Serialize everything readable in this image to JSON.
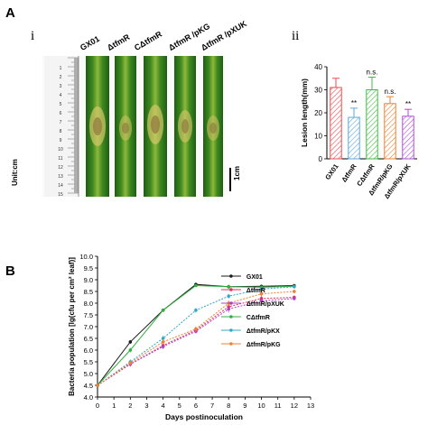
{
  "panel_a": {
    "letter": "A",
    "sub_i": "i",
    "sub_ii": "ii",
    "strain_labels": [
      "GX01",
      "ΔtfmR",
      "CΔtfmR",
      "ΔtfmR /pKG",
      "ΔtfmR /pXUK"
    ],
    "unit_label": "Unit:cm",
    "scale_bar_label": "1cm",
    "ruler_numbers": [
      "1",
      "2",
      "3",
      "4",
      "5",
      "6",
      "7",
      "8",
      "9",
      "10",
      "11",
      "12",
      "13",
      "14",
      "15"
    ]
  },
  "panel_b": {
    "letter": "B"
  },
  "chart_data": [
    {
      "type": "bar",
      "categories": [
        "GX01",
        "ΔtfmR",
        "CΔtfmR",
        "ΔtfmR/pKG",
        "ΔtfmR/pXUK"
      ],
      "values": [
        31,
        18,
        30,
        24,
        18.5
      ],
      "errors": [
        4,
        4,
        5.5,
        3,
        3
      ],
      "significance": [
        "",
        "**",
        "n.s.",
        "n.s.",
        "**"
      ],
      "colors": [
        "#f04a4a",
        "#5aa8e0",
        "#3cbf3c",
        "#f0802a",
        "#b04ad8"
      ],
      "ylabel": "Lesion length(mm)",
      "ylim": [
        0,
        40
      ],
      "yticks": [
        0,
        10,
        20,
        30,
        40
      ]
    },
    {
      "type": "line",
      "xlabel": "Days postinoculation",
      "ylabel": "Bacteria population [lg(cfu per cm² leaf)]",
      "xlim": [
        0,
        13
      ],
      "ylim": [
        4.0,
        10.0
      ],
      "xticks": [
        0,
        1,
        2,
        3,
        4,
        5,
        6,
        7,
        8,
        9,
        10,
        11,
        12,
        13
      ],
      "yticks": [
        "4.0",
        "4.5",
        "5.0",
        "5.5",
        "6.0",
        "6.5",
        "7.0",
        "7.5",
        "8.0",
        "8.5",
        "9.0",
        "9.5",
        "10.0"
      ],
      "x": [
        0,
        2,
        4,
        6,
        8,
        10,
        12
      ],
      "series": [
        {
          "name": "GX01",
          "color": "#1a1a1a",
          "values": [
            4.5,
            6.35,
            7.7,
            8.8,
            8.7,
            8.72,
            8.75
          ],
          "err": [
            0.05,
            0.08,
            0.06,
            0.06,
            0.08,
            0.05,
            0.05
          ]
        },
        {
          "name": "ΔtfmR",
          "color": "#e03060",
          "values": [
            4.5,
            5.4,
            6.2,
            6.85,
            7.85,
            8.2,
            8.25
          ],
          "err": [
            0.05,
            0.1,
            0.12,
            0.1,
            0.15,
            0.12,
            0.08
          ]
        },
        {
          "name": "ΔtfmR/pXUK",
          "color": "#b040c8",
          "values": [
            4.5,
            5.4,
            6.15,
            6.8,
            7.75,
            8.1,
            8.2
          ],
          "err": [
            0.05,
            0.1,
            0.1,
            0.1,
            0.15,
            0.15,
            0.08
          ]
        },
        {
          "name": "CΔtfmR",
          "color": "#30b040",
          "values": [
            4.5,
            6.0,
            7.7,
            8.75,
            8.7,
            8.68,
            8.72
          ],
          "err": [
            0.05,
            0.1,
            0.06,
            0.06,
            0.08,
            0.06,
            0.05
          ]
        },
        {
          "name": "ΔtfmR/pKX",
          "color": "#30a8c8",
          "values": [
            4.5,
            5.5,
            6.5,
            7.7,
            8.3,
            8.6,
            8.7
          ],
          "err": [
            0.05,
            0.1,
            0.12,
            0.1,
            0.1,
            0.08,
            0.06
          ]
        },
        {
          "name": "ΔtfmR/pKG",
          "color": "#f08030",
          "values": [
            4.5,
            5.45,
            6.35,
            6.9,
            8.0,
            8.4,
            8.5
          ],
          "err": [
            0.05,
            0.1,
            0.12,
            0.12,
            0.12,
            0.1,
            0.08
          ]
        }
      ]
    }
  ]
}
